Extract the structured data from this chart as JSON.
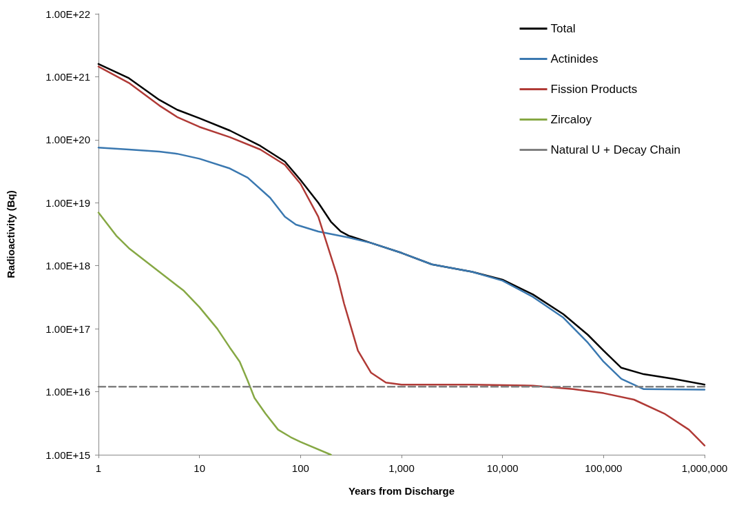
{
  "chart_data": {
    "type": "line",
    "xlabel": "Years from Discharge",
    "ylabel": "Radioactivity (Bq)",
    "log": "xy",
    "grid": false,
    "legend": "top right",
    "marker": "none",
    "line_style": "solid",
    "xlim": [
      1,
      1000000
    ],
    "ylim": [
      1000000000000000.0,
      1e+22
    ],
    "xticks": [
      1,
      10,
      100,
      {
        "value": 1000,
        "label": "1,000"
      },
      {
        "value": 10000,
        "label": "10,000"
      },
      {
        "value": 100000,
        "label": "100,000"
      },
      {
        "value": 1000000,
        "label": "1,000,000"
      }
    ],
    "yticks": [
      {
        "value": 1000000000000000.0,
        "label": "1.00E+15"
      },
      {
        "value": 1e+16,
        "label": "1.00E+16"
      },
      {
        "value": 1e+17,
        "label": "1.00E+17"
      },
      {
        "value": 1e+18,
        "label": "1.00E+18"
      },
      {
        "value": 1e+19,
        "label": "1.00E+19"
      },
      {
        "value": 1e+20,
        "label": "1.00E+20"
      },
      {
        "value": 1e+21,
        "label": "1.00E+21"
      },
      {
        "value": 1e+22,
        "label": "1.00E+22"
      }
    ],
    "series": [
      {
        "name": "Total",
        "color": "#000000",
        "x": [
          1,
          2,
          4,
          6,
          10,
          20,
          40,
          70,
          100,
          150,
          200,
          250,
          300,
          500,
          1000,
          2000,
          5000,
          10000,
          20000,
          40000,
          70000,
          100000,
          150000,
          250000,
          500000,
          1000000
        ],
        "values": [
          1.6e+21,
          9.5e+20,
          4.3e+20,
          3e+20,
          2.2e+20,
          1.4e+20,
          8e+19,
          4.5e+19,
          2.3e+19,
          1e+19,
          5e+18,
          3.5e+18,
          3e+18,
          2.3e+18,
          1.6e+18,
          1.05e+18,
          8e+17,
          6e+17,
          3.5e+17,
          1.7e+17,
          8e+16,
          4.5e+16,
          2.4e+16,
          1.9e+16,
          1.6e+16,
          1.3e+16
        ]
      },
      {
        "name": "Actinides",
        "color": "#3a78b0",
        "x": [
          1,
          2,
          4,
          6,
          10,
          20,
          30,
          50,
          70,
          90,
          150,
          300,
          500,
          1000,
          2000,
          5000,
          10000,
          20000,
          40000,
          70000,
          100000,
          150000,
          250000,
          1000000
        ],
        "values": [
          7.5e+19,
          7e+19,
          6.5e+19,
          6e+19,
          5e+19,
          3.5e+19,
          2.5e+19,
          1.2e+19,
          6e+18,
          4.5e+18,
          3.5e+18,
          2.8e+18,
          2.3e+18,
          1.6e+18,
          1.05e+18,
          8e+17,
          5.8e+17,
          3.2e+17,
          1.5e+17,
          6e+16,
          3e+16,
          1.6e+16,
          1.1e+16,
          1.08e+16
        ]
      },
      {
        "name": "Fission Products",
        "color": "#b03a36",
        "x": [
          1,
          2,
          4,
          6,
          10,
          20,
          40,
          70,
          100,
          150,
          230,
          270,
          370,
          500,
          700,
          1000,
          5000,
          20000,
          50000,
          100000,
          200000,
          400000,
          700000,
          1000000
        ],
        "values": [
          1.45e+21,
          8e+20,
          3.5e+20,
          2.3e+20,
          1.6e+20,
          1.1e+20,
          7e+19,
          4e+19,
          2e+19,
          6e+18,
          7e+17,
          2.5e+17,
          4.5e+16,
          2e+16,
          1.4e+16,
          1.3e+16,
          1.3e+16,
          1.25e+16,
          1.1e+16,
          9500000000000000.0,
          7500000000000000.0,
          4500000000000000.0,
          2500000000000000.0,
          1400000000000000.0
        ]
      },
      {
        "name": "Zircaloy",
        "color": "#86a844",
        "x": [
          1,
          1.5,
          2,
          4,
          7,
          10,
          15,
          20,
          25,
          30,
          35,
          45,
          60,
          80,
          100,
          200
        ],
        "values": [
          7e+18,
          3e+18,
          1.9e+18,
          8e+17,
          4e+17,
          2.2e+17,
          1e+17,
          5e+16,
          3e+16,
          1.5e+16,
          8000000000000000.0,
          4500000000000000.0,
          2500000000000000.0,
          1900000000000000.0,
          1600000000000000.0,
          1000000000000000.0
        ]
      },
      {
        "name": "Natural U + Decay Chain",
        "color": "#808080",
        "line_style": "dashed",
        "x": [
          1,
          1000000
        ],
        "values": [
          1.2e+16,
          1.2e+16
        ]
      }
    ]
  }
}
